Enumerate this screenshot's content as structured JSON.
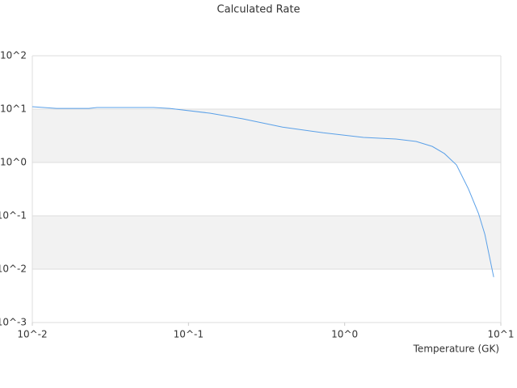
{
  "chart_data": {
    "type": "line",
    "title": "Calculated Rate",
    "x_label": "Temperature (GK)",
    "xscale": "log",
    "yscale": "log",
    "grid": true,
    "xlim": [
      0.01,
      10
    ],
    "ylim": [
      0.001,
      100
    ],
    "xticks": [
      {
        "value": 0.01,
        "label": "10^-2"
      },
      {
        "value": 0.1,
        "label": "10^-1"
      },
      {
        "value": 1,
        "label": "10^0"
      },
      {
        "value": 10,
        "label": "10^1"
      }
    ],
    "yticks": [
      {
        "value": 0.001,
        "label": "10^-3"
      },
      {
        "value": 0.01,
        "label": "10^-2"
      },
      {
        "value": 0.1,
        "label": "10^-1"
      },
      {
        "value": 1,
        "label": "10^0"
      },
      {
        "value": 10,
        "label": "10^1"
      },
      {
        "value": 100,
        "label": "10^2"
      }
    ],
    "series": [
      {
        "color": "#5aa0e8",
        "x": [
          0.01,
          0.0143,
          0.023,
          0.026,
          0.0597,
          0.0758,
          0.137,
          0.221,
          0.4,
          0.73,
          1.32,
          2.13,
          2.87,
          3.64,
          4.35,
          5.2,
          6.2,
          7.2,
          7.9,
          9.0
        ],
        "values": [
          11.1,
          10.3,
          10.3,
          10.7,
          10.7,
          10.3,
          8.4,
          6.6,
          4.6,
          3.6,
          2.95,
          2.75,
          2.48,
          2.0,
          1.47,
          0.9,
          0.32,
          0.11,
          0.045,
          0.0071
        ]
      }
    ]
  }
}
